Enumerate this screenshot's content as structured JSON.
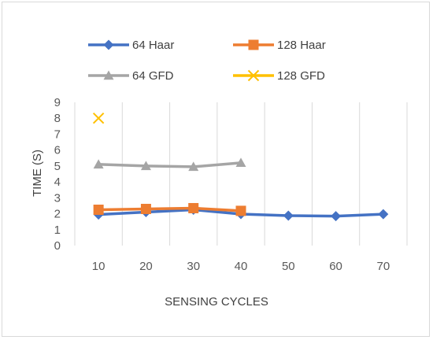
{
  "chart_data": {
    "type": "line",
    "title": "",
    "xlabel": "SENSING CYCLES",
    "ylabel": "TIME (S)",
    "categories": [
      "10",
      "20",
      "30",
      "40",
      "50",
      "60",
      "70"
    ],
    "ylim": [
      0,
      9
    ],
    "yticks": [
      0,
      1,
      2,
      3,
      4,
      5,
      6,
      7,
      8,
      9
    ],
    "grid": "vertical",
    "legend_position": "top",
    "series": [
      {
        "name": "64 Haar",
        "color": "#4472c4",
        "marker": "diamond",
        "values": [
          1.95,
          2.1,
          2.25,
          1.98,
          1.88,
          1.85,
          1.97
        ]
      },
      {
        "name": "128 Haar",
        "color": "#ed7d31",
        "marker": "square",
        "values": [
          2.25,
          2.3,
          2.35,
          2.18,
          null,
          null,
          null
        ]
      },
      {
        "name": "64 GFD",
        "color": "#a5a5a5",
        "marker": "triangle",
        "values": [
          5.1,
          5.0,
          4.95,
          5.2,
          null,
          null,
          null
        ]
      },
      {
        "name": "128 GFD",
        "color": "#ffc000",
        "marker": "x",
        "values": [
          8.0,
          null,
          null,
          null,
          null,
          null,
          null
        ]
      }
    ]
  }
}
